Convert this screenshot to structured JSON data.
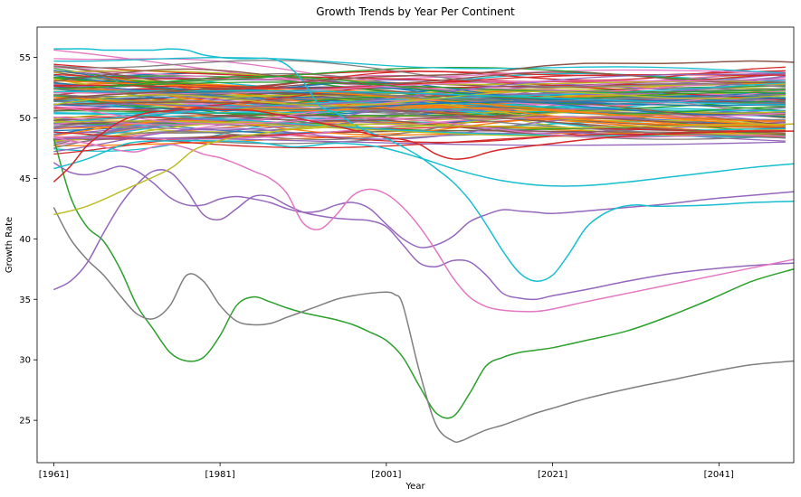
{
  "chart_data": {
    "type": "line",
    "title": "Growth Trends by Year Per Continent",
    "xlabel": "Year",
    "ylabel": "Growth Rate",
    "xlim": [
      1959,
      2050
    ],
    "ylim": [
      21.5,
      57.5
    ],
    "x_ticks": [
      {
        "value": 1961,
        "label": "[1961]"
      },
      {
        "value": 1981,
        "label": "[1981]"
      },
      {
        "value": 2001,
        "label": "[2001]"
      },
      {
        "value": 2021,
        "label": "[2021]"
      },
      {
        "value": 2041,
        "label": "[2041]"
      }
    ],
    "y_ticks": [
      25,
      30,
      35,
      40,
      45,
      50,
      55
    ],
    "grid": false,
    "legend": "none",
    "background_band": {
      "count": 130,
      "y_range": [
        47.5,
        54.0
      ],
      "note": "dense bundle of nearly flat series between ~47.5 and ~54"
    },
    "series": [
      {
        "color": "#2ca02c",
        "x": [
          1961,
          1963,
          1965,
          1967,
          1969,
          1971,
          1973,
          1975,
          1977,
          1979,
          1981,
          1983,
          1985,
          1987,
          1989,
          1991,
          1993,
          1995,
          1997,
          1999,
          2001,
          2003,
          2005,
          2007,
          2009,
          2011,
          2013,
          2015,
          2017,
          2019,
          2021,
          2025,
          2030,
          2035,
          2040,
          2045,
          2050
        ],
        "values": [
          48.3,
          43.5,
          41.0,
          39.8,
          37.5,
          34.5,
          32.5,
          30.6,
          29.9,
          30.2,
          32.0,
          34.5,
          35.2,
          34.8,
          34.3,
          33.9,
          33.6,
          33.3,
          32.9,
          32.3,
          31.6,
          30.2,
          27.8,
          25.6,
          25.3,
          27.2,
          29.5,
          30.2,
          30.6,
          30.8,
          31.0,
          31.6,
          32.4,
          33.6,
          35.0,
          36.5,
          37.5
        ]
      },
      {
        "color": "#7f7f7f",
        "x": [
          1961,
          1963,
          1965,
          1967,
          1969,
          1971,
          1973,
          1975,
          1977,
          1979,
          1981,
          1983,
          1985,
          1987,
          1989,
          1991,
          1993,
          1995,
          1997,
          1999,
          2001,
          2002,
          2003,
          2005,
          2007,
          2009,
          2010,
          2011,
          2013,
          2015,
          2017,
          2019,
          2021,
          2025,
          2030,
          2035,
          2040,
          2045,
          2050
        ],
        "values": [
          42.6,
          40.0,
          38.3,
          37.0,
          35.3,
          33.8,
          33.4,
          34.5,
          37.0,
          36.5,
          34.5,
          33.2,
          32.9,
          33.0,
          33.5,
          34.0,
          34.5,
          35.0,
          35.3,
          35.5,
          35.6,
          35.4,
          34.5,
          29.0,
          24.6,
          23.3,
          23.3,
          23.6,
          24.2,
          24.6,
          25.1,
          25.6,
          26.0,
          26.8,
          27.6,
          28.3,
          29.0,
          29.6,
          29.9
        ]
      },
      {
        "color": "#9467bd",
        "x": [
          1961,
          1963,
          1965,
          1967,
          1969,
          1971,
          1973,
          1975,
          1977,
          1979,
          1981,
          1983,
          1985,
          1987,
          1989,
          1991,
          1993,
          1995,
          1997,
          1999,
          2001,
          2003,
          2005,
          2007,
          2009,
          2011,
          2013,
          2015,
          2017,
          2019,
          2021,
          2025,
          2030,
          2035,
          2040,
          2045,
          2050
        ],
        "values": [
          35.8,
          36.5,
          38.0,
          40.5,
          42.8,
          44.5,
          45.6,
          45.5,
          44.0,
          42.0,
          41.6,
          42.5,
          43.5,
          43.5,
          42.8,
          42.2,
          41.9,
          41.7,
          41.6,
          41.5,
          41.0,
          39.5,
          38.0,
          37.7,
          38.2,
          38.1,
          37.0,
          35.5,
          35.1,
          35.0,
          35.3,
          35.8,
          36.5,
          37.1,
          37.5,
          37.8,
          38.0
        ]
      },
      {
        "color": "#9467bd",
        "x": [
          1961,
          1963,
          1965,
          1967,
          1969,
          1971,
          1973,
          1975,
          1977,
          1979,
          1981,
          1983,
          1985,
          1987,
          1989,
          1991,
          1993,
          1995,
          1997,
          1999,
          2001,
          2003,
          2005,
          2007,
          2009,
          2011,
          2013,
          2015,
          2017,
          2019,
          2021,
          2025,
          2030,
          2035,
          2040,
          2045,
          2050
        ],
        "values": [
          46.3,
          45.5,
          45.3,
          45.6,
          46.0,
          45.6,
          44.6,
          43.4,
          42.8,
          42.8,
          43.3,
          43.5,
          43.3,
          43.0,
          42.5,
          42.2,
          42.3,
          42.8,
          43.0,
          42.5,
          41.2,
          40.0,
          39.3,
          39.5,
          40.2,
          41.4,
          42.0,
          42.4,
          42.3,
          42.2,
          42.1,
          42.3,
          42.6,
          42.9,
          43.3,
          43.6,
          43.9
        ]
      },
      {
        "color": "#e377c2",
        "x": [
          1961,
          1963,
          1965,
          1967,
          1969,
          1971,
          1973,
          1975,
          1977,
          1979,
          1981,
          1983,
          1985,
          1987,
          1989,
          1991,
          1993,
          1995,
          1997,
          1999,
          2001,
          2003,
          2005,
          2007,
          2009,
          2011,
          2013,
          2015,
          2017,
          2019,
          2021,
          2025,
          2030,
          2035,
          2040,
          2045,
          2050
        ],
        "values": [
          48.4,
          48.1,
          47.9,
          47.6,
          47.3,
          47.2,
          47.6,
          47.8,
          47.5,
          47.0,
          46.7,
          46.2,
          45.6,
          45.0,
          43.8,
          41.3,
          40.8,
          42.0,
          43.6,
          44.1,
          43.7,
          42.6,
          41.0,
          39.0,
          36.8,
          35.2,
          34.4,
          34.1,
          34.0,
          34.0,
          34.2,
          34.8,
          35.5,
          36.2,
          36.9,
          37.6,
          38.3
        ]
      },
      {
        "color": "#17becf",
        "x": [
          1961,
          1963,
          1965,
          1967,
          1969,
          1971,
          1973,
          1975,
          1977,
          1979,
          1981,
          1983,
          1985,
          1987,
          1989,
          1991,
          1993,
          1995,
          1997,
          1999,
          2001,
          2003,
          2005,
          2007,
          2009,
          2011,
          2013,
          2015,
          2017,
          2019,
          2021,
          2023,
          2025,
          2027,
          2029,
          2031,
          2033,
          2035,
          2040,
          2045,
          2050
        ],
        "values": [
          55.7,
          55.7,
          55.7,
          55.6,
          55.6,
          55.6,
          55.6,
          55.7,
          55.6,
          55.2,
          55.0,
          54.9,
          54.9,
          54.9,
          54.4,
          53.0,
          51.0,
          50.4,
          49.5,
          48.8,
          48.3,
          47.6,
          46.8,
          45.8,
          44.7,
          43.2,
          41.2,
          39.0,
          37.2,
          36.5,
          37.0,
          38.8,
          40.9,
          42.0,
          42.6,
          42.8,
          42.7,
          42.7,
          42.8,
          43.0,
          43.1
        ]
      },
      {
        "color": "#17becf",
        "x": [
          1961,
          1965,
          1970,
          1975,
          1980,
          1985,
          1990,
          1995,
          2000,
          2005,
          2010,
          2015,
          2020,
          2025,
          2030,
          2035,
          2040,
          2045,
          2050
        ],
        "values": [
          45.8,
          46.6,
          47.9,
          48.1,
          48.1,
          48.0,
          47.6,
          47.9,
          47.6,
          46.7,
          45.6,
          44.8,
          44.4,
          44.4,
          44.7,
          45.1,
          45.5,
          45.9,
          46.2
        ]
      },
      {
        "color": "#bcbd22",
        "x": [
          1961,
          1965,
          1970,
          1975,
          1978,
          1982,
          1986,
          1990,
          1995,
          2000,
          2005,
          2010,
          2015,
          2020,
          2025,
          2030,
          2035,
          2040,
          2045,
          2050
        ],
        "values": [
          42.0,
          42.7,
          44.2,
          45.8,
          47.4,
          48.3,
          48.7,
          49.1,
          49.4,
          49.5,
          49.4,
          49.3,
          49.3,
          49.2,
          49.2,
          49.3,
          49.3,
          49.4,
          49.4,
          49.5
        ]
      },
      {
        "color": "#d62728",
        "x": [
          1961,
          1963,
          1965,
          1967,
          1969,
          1971,
          1973,
          1975,
          1977,
          1979,
          1981,
          1985,
          1990,
          1995,
          2000,
          2003,
          2005,
          2007,
          2009,
          2011,
          2013,
          2015,
          2020,
          2025,
          2030,
          2035,
          2040,
          2045,
          2050
        ],
        "values": [
          44.7,
          46.0,
          47.7,
          48.8,
          49.7,
          50.2,
          50.5,
          50.6,
          50.7,
          50.8,
          50.7,
          50.6,
          50.0,
          49.3,
          48.5,
          48.2,
          47.8,
          47.0,
          46.6,
          46.7,
          47.1,
          47.4,
          47.8,
          48.2,
          48.5,
          48.7,
          48.8,
          48.9,
          48.9
        ]
      },
      {
        "color": "#8c564b",
        "x": [
          1961,
          1965,
          1970,
          1975,
          1980,
          1985,
          1990,
          1995,
          2000,
          2005,
          2010,
          2015,
          2020,
          2025,
          2030,
          2035,
          2040,
          2045,
          2050
        ],
        "values": [
          51.5,
          51.8,
          52.0,
          52.2,
          52.4,
          52.6,
          52.9,
          53.2,
          53.4,
          53.5,
          53.6,
          53.9,
          54.3,
          54.5,
          54.5,
          54.5,
          54.6,
          54.7,
          54.6
        ]
      }
    ]
  }
}
